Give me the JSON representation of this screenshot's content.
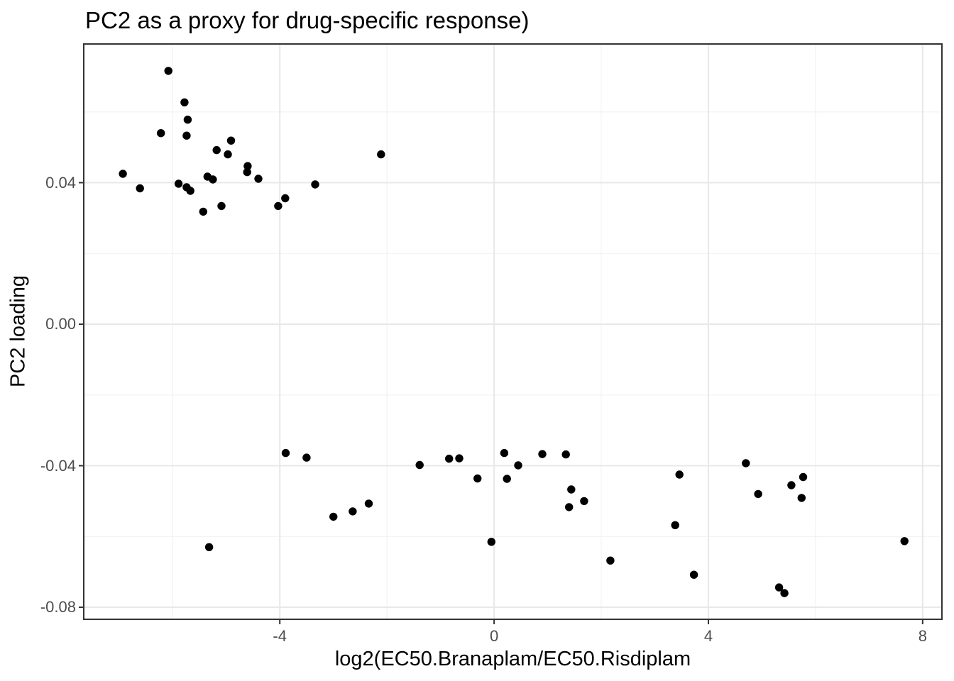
{
  "title": "PC2 as a proxy for drug-specific response)",
  "colors": {
    "background": "#ffffff",
    "panel_background": "#ffffff",
    "panel_border": "#333333",
    "grid_major": "#e8e8e8",
    "grid_minor": "#f2f2f2",
    "tick_mark": "#333333",
    "tick_label": "#4d4d4d",
    "title_text": "#000000",
    "point": "#000000"
  },
  "chart_data": {
    "type": "scatter",
    "title": "PC2 as a proxy for drug-specific response)",
    "xlabel": "log2(EC50.Branaplam/EC50.Risdiplam",
    "ylabel": "PC2 loading",
    "xlim": [
      -7.66,
      8.36
    ],
    "ylim": [
      -0.0834,
      0.0792
    ],
    "x_ticks": [
      -4,
      0,
      4,
      8
    ],
    "x_tick_labels": [
      "-4",
      "0",
      "4",
      "8"
    ],
    "x_minor_ticks": [
      -6,
      -2,
      2,
      6
    ],
    "y_ticks": [
      0.04,
      0.0,
      -0.04,
      -0.08
    ],
    "y_tick_labels": [
      "0.04",
      "0.00",
      "-0.04",
      "-0.08"
    ],
    "y_minor_ticks": [
      0.06,
      0.02,
      -0.02,
      -0.06
    ],
    "grid": "major and minor gridlines, light gray on white panel",
    "legend": false,
    "marker": {
      "shape": "circle",
      "radius_px": 5.7,
      "color": "#000000"
    },
    "points": [
      [
        -6.93,
        0.0425
      ],
      [
        -6.61,
        0.0384
      ],
      [
        -6.22,
        0.054
      ],
      [
        -6.08,
        0.0716
      ],
      [
        -5.89,
        0.0397
      ],
      [
        -5.78,
        0.0627
      ],
      [
        -5.74,
        0.0533
      ],
      [
        -5.74,
        0.0387
      ],
      [
        -5.72,
        0.0578
      ],
      [
        -5.67,
        0.0377
      ],
      [
        -5.43,
        0.0318
      ],
      [
        -5.35,
        0.0417
      ],
      [
        -5.25,
        0.0409
      ],
      [
        -5.18,
        0.0492
      ],
      [
        -5.09,
        0.0334
      ],
      [
        -4.97,
        0.048
      ],
      [
        -4.91,
        0.0519
      ],
      [
        -4.61,
        0.043
      ],
      [
        -4.6,
        0.0447
      ],
      [
        -4.4,
        0.0411
      ],
      [
        -4.03,
        0.0334
      ],
      [
        -3.9,
        0.0356
      ],
      [
        -3.34,
        0.0395
      ],
      [
        -2.11,
        0.048
      ],
      [
        -5.32,
        -0.063
      ],
      [
        -3.89,
        -0.0364
      ],
      [
        -3.5,
        -0.0377
      ],
      [
        -3.0,
        -0.0544
      ],
      [
        -2.64,
        -0.0529
      ],
      [
        -2.34,
        -0.0507
      ],
      [
        -1.39,
        -0.0398
      ],
      [
        -0.84,
        -0.038
      ],
      [
        -0.65,
        -0.0379
      ],
      [
        -0.31,
        -0.0436
      ],
      [
        -0.05,
        -0.0615
      ],
      [
        0.19,
        -0.0364
      ],
      [
        0.24,
        -0.0437
      ],
      [
        0.45,
        -0.0399
      ],
      [
        0.9,
        -0.0367
      ],
      [
        1.34,
        -0.0368
      ],
      [
        1.4,
        -0.0517
      ],
      [
        1.44,
        -0.0467
      ],
      [
        1.68,
        -0.05
      ],
      [
        2.17,
        -0.0668
      ],
      [
        3.38,
        -0.0568
      ],
      [
        3.46,
        -0.0425
      ],
      [
        3.73,
        -0.0708
      ],
      [
        4.7,
        -0.0393
      ],
      [
        4.93,
        -0.048
      ],
      [
        5.32,
        -0.0744
      ],
      [
        5.42,
        -0.076
      ],
      [
        5.55,
        -0.0455
      ],
      [
        5.74,
        -0.0491
      ],
      [
        5.77,
        -0.0432
      ],
      [
        7.66,
        -0.0613
      ]
    ]
  }
}
